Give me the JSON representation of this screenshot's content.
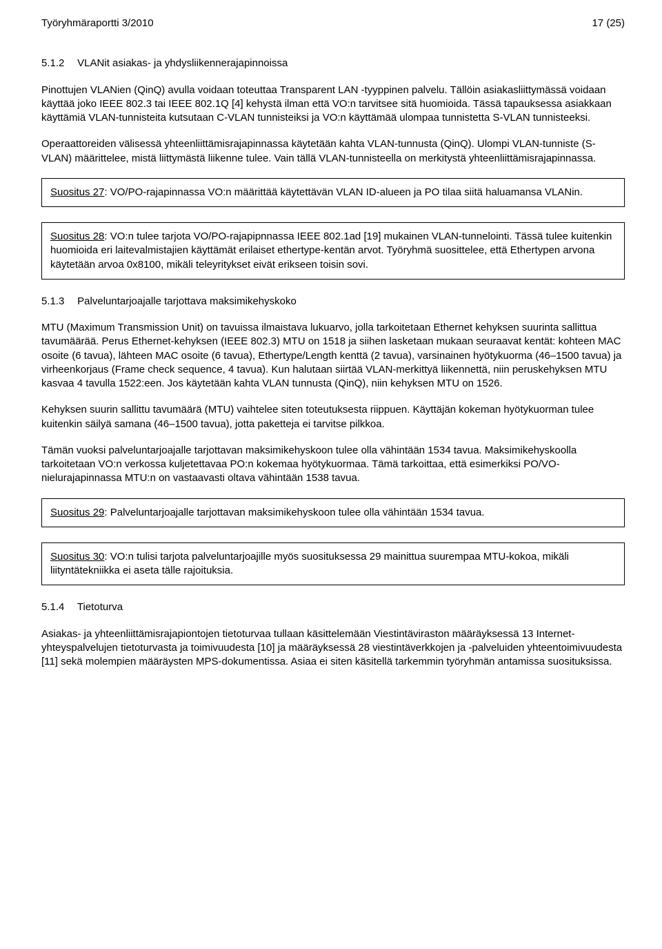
{
  "header": {
    "left": "Työryhmäraportti 3/2010",
    "right": "17 (25)"
  },
  "section1": {
    "number": "5.1.2",
    "title": "VLANit asiakas- ja yhdysliikennerajapinnoissa",
    "p1": "Pinottujen VLANien (QinQ) avulla voidaan toteuttaa Transparent LAN -tyyppinen palvelu. Tällöin asiakasliittymässä voidaan käyttää joko IEEE 802.3 tai IEEE 802.1Q [4] kehystä ilman että VO:n tarvitsee sitä huomioida. Tässä tapauksessa asiakkaan käyttämiä VLAN-tunnisteita kutsutaan C-VLAN tunnisteiksi ja VO:n käyttämää ulompaa tunnistetta S-VLAN tunnisteeksi.",
    "p2": "Operaattoreiden välisessä yhteenliittämisrajapinnassa käytetään kahta VLAN-tunnusta (QinQ). Ulompi VLAN-tunniste (S-VLAN) määrittelee, mistä liittymästä liikenne tulee. Vain tällä VLAN-tunnisteella on merkitystä yhteenliittämisrajapinnassa."
  },
  "box27": {
    "label": "Suositus 27",
    "text": ": VO/PO-rajapinnassa VO:n määrittää käytettävän VLAN ID-alueen ja PO tilaa siitä haluamansa VLANin."
  },
  "box28": {
    "label": "Suositus 28",
    "text": ": VO:n tulee tarjota VO/PO-rajapipnnassa IEEE 802.1ad [19] mukainen VLAN-tunnelointi. Tässä tulee kuitenkin huomioida eri laitevalmistajien käyttämät erilaiset ethertype-kentän arvot. Työryhmä suosittelee, että Ethertypen arvona käytetään arvoa 0x8100, mikäli teleyritykset eivät erikseen toisin sovi."
  },
  "section2": {
    "number": "5.1.3",
    "title": "Palveluntarjoajalle tarjottava maksimikehyskoko",
    "p1": "MTU (Maximum Transmission Unit) on tavuissa ilmaistava lukuarvo, jolla tarkoitetaan Ethernet kehyksen suurinta sallittua tavumäärää. Perus Ethernet-kehyksen (IEEE 802.3) MTU on 1518 ja siihen lasketaan mukaan seuraavat kentät: kohteen MAC osoite (6 tavua), lähteen MAC osoite (6 tavua), Ethertype/Length kenttä (2 tavua), varsinainen hyötykuorma (46–1500 tavua) ja virheenkorjaus (Frame check sequence, 4 tavua). Kun halutaan siirtää VLAN-merkittyä liikennettä, niin peruskehyksen MTU kasvaa 4 tavulla 1522:een. Jos käytetään kahta VLAN tunnusta (QinQ), niin kehyksen MTU on 1526.",
    "p2": "Kehyksen suurin sallittu tavumäärä (MTU) vaihtelee siten toteutuksesta riippuen. Käyttäjän kokeman hyötykuorman tulee kuitenkin säilyä samana (46–1500 tavua), jotta paketteja ei tarvitse pilkkoa.",
    "p3": "Tämän vuoksi palveluntarjoajalle tarjottavan maksimikehyskoon tulee olla vähintään 1534 tavua. Maksimikehyskoolla tarkoitetaan VO:n verkossa kuljetettavaa PO:n kokemaa hyötykuormaa. Tämä tarkoittaa, että esimerkiksi PO/VO-nielurajapinnassa MTU:n on vastaavasti oltava vähintään 1538 tavua."
  },
  "box29": {
    "label": "Suositus 29",
    "text": ": Palveluntarjoajalle tarjottavan maksimikehyskoon tulee olla vähintään 1534 tavua."
  },
  "box30": {
    "label": "Suositus 30",
    "text": ": VO:n tulisi tarjota palveluntarjoajille myös suosituksessa 29 mainittua suurempaa MTU-kokoa, mikäli liityntätekniikka ei aseta tälle rajoituksia."
  },
  "section3": {
    "number": "5.1.4",
    "title": "Tietoturva",
    "p1": "Asiakas- ja yhteenliittämisrajapiontojen tietoturvaa tullaan käsittelemään Viestintäviraston määräyksessä 13 Internet-yhteyspalvelujen tietoturvasta ja toimivuudesta [10] ja määräyksessä 28 viestintäverkkojen ja -palveluiden yhteentoimivuudesta [11] sekä molempien määräysten MPS-dokumentissa. Asiaa ei siten käsitellä tarkemmin työryhmän antamissa suosituksissa."
  }
}
